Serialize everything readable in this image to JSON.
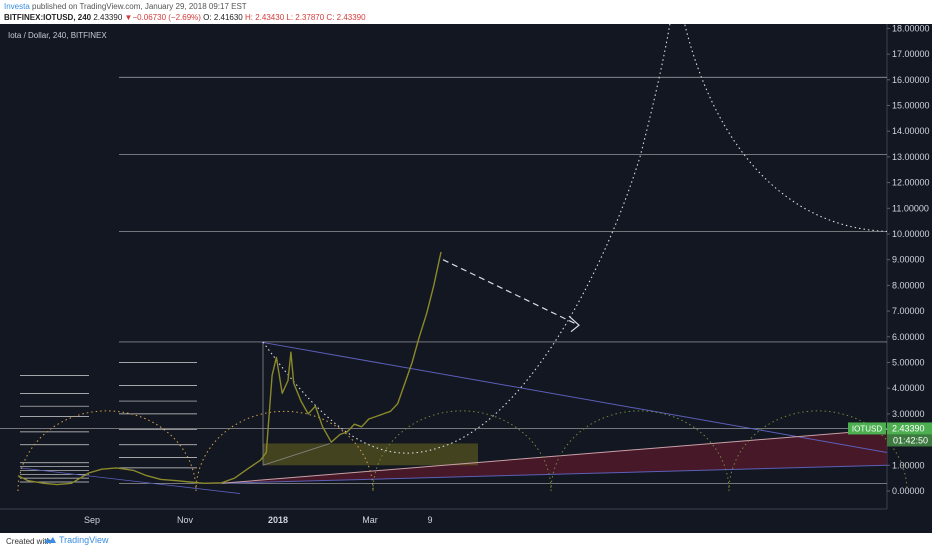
{
  "header": {
    "author": "Investa",
    "published_text": " published on TradingView.com, January 29, 2018 09:17 EST",
    "symbol": "BITFINEX:IOTUSD, 240",
    "last": "2.43390",
    "change": "−0.06730 (−2.69%)",
    "open": "O: 2.41630",
    "high": "H: 2.43430",
    "low": "L: 2.37870",
    "close": "C: 2.43390"
  },
  "chart_data": {
    "type": "line",
    "title": "Iota / Dollar, 240, BITFINEX",
    "x_tick_labels": [
      "Sep",
      "Nov",
      "2018",
      "Mar",
      "9"
    ],
    "y_tick_labels": [
      "0.00000",
      "1.00000",
      "2.00000",
      "3.00000",
      "4.00000",
      "5.00000",
      "6.00000",
      "7.00000",
      "8.00000",
      "9.00000",
      "10.00000",
      "11.00000",
      "12.00000",
      "13.00000",
      "14.00000",
      "15.00000",
      "16.00000",
      "17.00000",
      "18.00000"
    ],
    "ylim": [
      -1.3,
      18.3
    ],
    "grid": false,
    "series": [
      {
        "values_description": "price",
        "points": [
          [
            "2017-06-13",
            0.6
          ],
          [
            "2017-06-20",
            0.4
          ],
          [
            "2017-07-01",
            0.3
          ],
          [
            "2017-07-10",
            0.25
          ],
          [
            "2017-07-20",
            0.3
          ],
          [
            "2017-08-01",
            0.7
          ],
          [
            "2017-08-10",
            0.85
          ],
          [
            "2017-08-20",
            0.9
          ],
          [
            "2017-09-01",
            0.8
          ],
          [
            "2017-09-10",
            0.6
          ],
          [
            "2017-09-20",
            0.45
          ],
          [
            "2017-10-01",
            0.4
          ],
          [
            "2017-10-10",
            0.35
          ],
          [
            "2017-10-20",
            0.3
          ],
          [
            "2017-11-01",
            0.32
          ],
          [
            "2017-11-10",
            0.5
          ],
          [
            "2017-11-20",
            0.9
          ],
          [
            "2017-11-28",
            1.2
          ],
          [
            "2017-12-02",
            1.5
          ],
          [
            "2017-12-06",
            4.5
          ],
          [
            "2017-12-09",
            5.2
          ],
          [
            "2017-12-13",
            3.8
          ],
          [
            "2017-12-17",
            4.3
          ],
          [
            "2017-12-19",
            5.4
          ],
          [
            "2017-12-21",
            4.2
          ],
          [
            "2017-12-26",
            3.5
          ],
          [
            "2017-12-31",
            3.0
          ],
          [
            "2018-01-05",
            3.3
          ],
          [
            "2018-01-10",
            2.5
          ],
          [
            "2018-01-16",
            1.9
          ],
          [
            "2018-01-22",
            2.2
          ],
          [
            "2018-01-27",
            2.3
          ],
          [
            "2018-02-01",
            2.6
          ],
          [
            "2018-02-06",
            2.5
          ],
          [
            "2018-02-11",
            2.8
          ],
          [
            "2018-02-16",
            2.9
          ],
          [
            "2018-02-21",
            3.0
          ],
          [
            "2018-02-26",
            3.1
          ],
          [
            "2018-03-03",
            3.4
          ],
          [
            "2018-03-08",
            4.2
          ],
          [
            "2018-03-13",
            5.0
          ],
          [
            "2018-03-18",
            6.0
          ],
          [
            "2018-03-23",
            6.9
          ],
          [
            "2018-03-28",
            8.0
          ],
          [
            "2018-04-02",
            9.3
          ]
        ]
      }
    ],
    "price_label": {
      "symbol": "IOTUSD",
      "value": "2.43390",
      "countdown": "01:42:50"
    },
    "colors": {
      "background": "#131722",
      "price": "#8a8a2a",
      "price_label": "#4caf50",
      "fib": "#d6d6d6",
      "trendline": "#5b5fb8"
    }
  },
  "footer": {
    "created_with": "Created with",
    "brand": "TradingView"
  }
}
